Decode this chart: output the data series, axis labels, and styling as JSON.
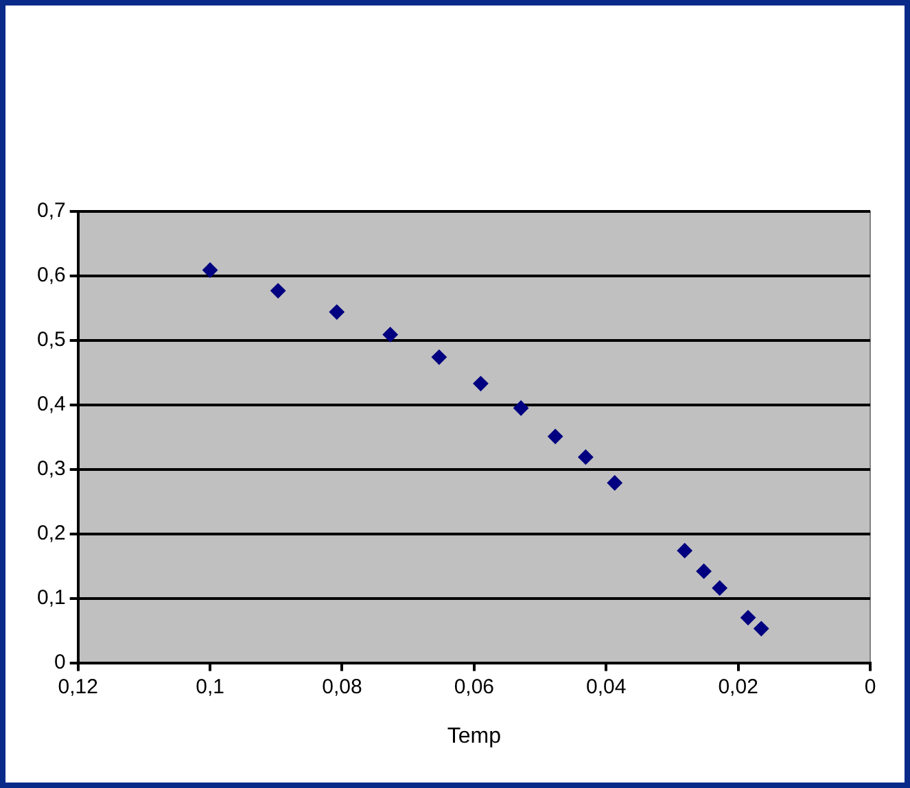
{
  "chart_data": {
    "type": "scatter",
    "xlabel": "Temp",
    "color": "#000080",
    "marker": "diamond",
    "grid": "y",
    "legend": false,
    "x": [
      0.1,
      0.0897,
      0.0808,
      0.0727,
      0.0653,
      0.059,
      0.0529,
      0.0477,
      0.0431,
      0.0387,
      0.0281,
      0.0252,
      0.0228,
      0.0185,
      0.0165
    ],
    "values": [
      0.609,
      0.577,
      0.544,
      0.509,
      0.474,
      0.433,
      0.395,
      0.351,
      0.319,
      0.279,
      0.174,
      0.142,
      0.116,
      0.07,
      0.053
    ],
    "xlim": [
      0.12,
      0
    ],
    "xticks": [
      {
        "value": 0.12,
        "label": "0,12"
      },
      {
        "value": 0.1,
        "label": "0,1"
      },
      {
        "value": 0.08,
        "label": "0,08"
      },
      {
        "value": 0.06,
        "label": "0,06"
      },
      {
        "value": 0.04,
        "label": "0,04"
      },
      {
        "value": 0.02,
        "label": "0,02"
      },
      0
    ],
    "ylim": [
      0,
      0.7
    ],
    "yticks": [
      0,
      {
        "value": 0.1,
        "label": "0,1"
      },
      {
        "value": 0.2,
        "label": "0,2"
      },
      {
        "value": 0.3,
        "label": "0,3"
      },
      {
        "value": 0.4,
        "label": "0,4"
      },
      {
        "value": 0.5,
        "label": "0,5"
      },
      {
        "value": 0.6,
        "label": "0,6"
      },
      {
        "value": 0.7,
        "label": "0,7"
      }
    ]
  }
}
